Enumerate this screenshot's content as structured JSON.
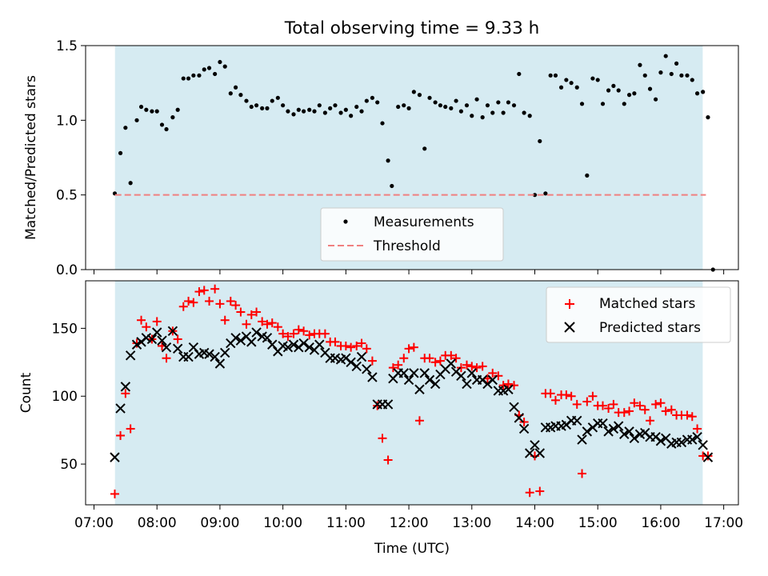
{
  "title": "Total observing time = 9.33 h",
  "xlabel": "Time (UTC)",
  "xticks": [
    {
      "label": "07:00",
      "h": 7.0
    },
    {
      "label": "08:00",
      "h": 8.0
    },
    {
      "label": "09:00",
      "h": 9.0
    },
    {
      "label": "10:00",
      "h": 10.0
    },
    {
      "label": "11:00",
      "h": 11.0
    },
    {
      "label": "12:00",
      "h": 12.0
    },
    {
      "label": "13:00",
      "h": 13.0
    },
    {
      "label": "14:00",
      "h": 14.0
    },
    {
      "label": "15:00",
      "h": 15.0
    },
    {
      "label": "16:00",
      "h": 16.0
    },
    {
      "label": "17:00",
      "h": 17.0
    }
  ],
  "colors": {
    "shade": "#add8e6",
    "measurement": "#000000",
    "threshold": "#f08080",
    "matched": "#ff0000",
    "predicted": "#000000"
  },
  "chart_data": [
    {
      "type": "scatter",
      "ylabel": "Matched/Predicted stars",
      "ylim": [
        0,
        1.5
      ],
      "xlim_time": [
        "06:52",
        "17:14"
      ],
      "yticks": [
        "0.0",
        "0.5",
        "1.0",
        "1.5"
      ],
      "shaded_span_time": [
        "07:20",
        "16:40"
      ],
      "threshold": 0.5,
      "legend_position": "lower-center",
      "legend": {
        "measurements": "Measurements",
        "threshold": "Threshold"
      },
      "points_time_hours": [
        [
          7.33,
          0.51
        ],
        [
          7.42,
          0.78
        ],
        [
          7.5,
          0.95
        ],
        [
          7.58,
          0.58
        ],
        [
          7.68,
          1.0
        ],
        [
          7.75,
          1.09
        ],
        [
          7.83,
          1.07
        ],
        [
          7.92,
          1.06
        ],
        [
          8.0,
          1.06
        ],
        [
          8.08,
          0.97
        ],
        [
          8.15,
          0.94
        ],
        [
          8.25,
          1.02
        ],
        [
          8.33,
          1.07
        ],
        [
          8.42,
          1.28
        ],
        [
          8.5,
          1.28
        ],
        [
          8.58,
          1.3
        ],
        [
          8.67,
          1.3
        ],
        [
          8.75,
          1.34
        ],
        [
          8.83,
          1.35
        ],
        [
          8.92,
          1.31
        ],
        [
          9.0,
          1.39
        ],
        [
          9.08,
          1.36
        ],
        [
          9.17,
          1.18
        ],
        [
          9.25,
          1.22
        ],
        [
          9.33,
          1.17
        ],
        [
          9.42,
          1.13
        ],
        [
          9.5,
          1.09
        ],
        [
          9.58,
          1.1
        ],
        [
          9.67,
          1.08
        ],
        [
          9.75,
          1.08
        ],
        [
          9.83,
          1.13
        ],
        [
          9.92,
          1.15
        ],
        [
          10.0,
          1.1
        ],
        [
          10.08,
          1.06
        ],
        [
          10.17,
          1.04
        ],
        [
          10.25,
          1.07
        ],
        [
          10.33,
          1.06
        ],
        [
          10.42,
          1.07
        ],
        [
          10.5,
          1.06
        ],
        [
          10.58,
          1.1
        ],
        [
          10.67,
          1.05
        ],
        [
          10.75,
          1.08
        ],
        [
          10.83,
          1.1
        ],
        [
          10.92,
          1.05
        ],
        [
          11.0,
          1.07
        ],
        [
          11.08,
          1.03
        ],
        [
          11.17,
          1.09
        ],
        [
          11.25,
          1.06
        ],
        [
          11.33,
          1.13
        ],
        [
          11.42,
          1.15
        ],
        [
          11.5,
          1.12
        ],
        [
          11.58,
          0.98
        ],
        [
          11.67,
          0.73
        ],
        [
          11.73,
          0.56
        ],
        [
          11.83,
          1.09
        ],
        [
          11.92,
          1.1
        ],
        [
          12.0,
          1.08
        ],
        [
          12.08,
          1.19
        ],
        [
          12.17,
          1.17
        ],
        [
          12.25,
          0.81
        ],
        [
          12.33,
          1.15
        ],
        [
          12.42,
          1.12
        ],
        [
          12.5,
          1.1
        ],
        [
          12.58,
          1.09
        ],
        [
          12.67,
          1.08
        ],
        [
          12.75,
          1.13
        ],
        [
          12.83,
          1.06
        ],
        [
          12.92,
          1.1
        ],
        [
          13.0,
          1.03
        ],
        [
          13.08,
          1.14
        ],
        [
          13.17,
          1.02
        ],
        [
          13.25,
          1.1
        ],
        [
          13.33,
          1.05
        ],
        [
          13.42,
          1.12
        ],
        [
          13.5,
          1.05
        ],
        [
          13.58,
          1.12
        ],
        [
          13.67,
          1.1
        ],
        [
          13.75,
          1.31
        ],
        [
          13.83,
          1.05
        ],
        [
          13.92,
          1.03
        ],
        [
          14.0,
          0.5
        ],
        [
          14.08,
          0.86
        ],
        [
          14.17,
          0.51
        ],
        [
          14.25,
          1.3
        ],
        [
          14.33,
          1.3
        ],
        [
          14.42,
          1.22
        ],
        [
          14.5,
          1.27
        ],
        [
          14.58,
          1.25
        ],
        [
          14.67,
          1.22
        ],
        [
          14.75,
          1.11
        ],
        [
          14.83,
          0.63
        ],
        [
          14.92,
          1.28
        ],
        [
          15.0,
          1.27
        ],
        [
          15.08,
          1.11
        ],
        [
          15.17,
          1.2
        ],
        [
          15.25,
          1.23
        ],
        [
          15.33,
          1.2
        ],
        [
          15.42,
          1.11
        ],
        [
          15.5,
          1.17
        ],
        [
          15.58,
          1.18
        ],
        [
          15.67,
          1.37
        ],
        [
          15.75,
          1.3
        ],
        [
          15.83,
          1.21
        ],
        [
          15.92,
          1.14
        ],
        [
          16.0,
          1.32
        ],
        [
          16.08,
          1.43
        ],
        [
          16.17,
          1.31
        ],
        [
          16.25,
          1.38
        ],
        [
          16.33,
          1.3
        ],
        [
          16.42,
          1.3
        ],
        [
          16.5,
          1.27
        ],
        [
          16.58,
          1.18
        ],
        [
          16.67,
          1.19
        ],
        [
          16.75,
          1.02
        ],
        [
          16.83,
          0.0
        ]
      ]
    },
    {
      "type": "scatter",
      "ylabel": "Count",
      "ylim": [
        20,
        185
      ],
      "xlim_time": [
        "06:52",
        "17:14"
      ],
      "yticks": [
        "50",
        "100",
        "150"
      ],
      "shaded_span_time": [
        "07:20",
        "16:40"
      ],
      "legend_position": "upper-right",
      "legend": {
        "matched": "Matched stars",
        "predicted": "Predicted stars"
      },
      "matched_time_hours": [
        [
          7.33,
          28
        ],
        [
          7.42,
          71
        ],
        [
          7.5,
          102
        ],
        [
          7.58,
          76
        ],
        [
          7.68,
          139
        ],
        [
          7.75,
          156
        ],
        [
          7.83,
          151
        ],
        [
          7.92,
          142
        ],
        [
          8.0,
          155
        ],
        [
          8.08,
          137
        ],
        [
          8.15,
          128
        ],
        [
          8.25,
          148
        ],
        [
          8.33,
          142
        ],
        [
          8.42,
          166
        ],
        [
          8.5,
          170
        ],
        [
          8.58,
          169
        ],
        [
          8.67,
          177
        ],
        [
          8.75,
          178
        ],
        [
          8.83,
          170
        ],
        [
          8.92,
          179
        ],
        [
          9.0,
          168
        ],
        [
          9.08,
          156
        ],
        [
          9.17,
          170
        ],
        [
          9.25,
          167
        ],
        [
          9.33,
          162
        ],
        [
          9.42,
          153
        ],
        [
          9.5,
          160
        ],
        [
          9.58,
          162
        ],
        [
          9.67,
          155
        ],
        [
          9.75,
          153
        ],
        [
          9.83,
          154
        ],
        [
          9.92,
          151
        ],
        [
          10.0,
          146
        ],
        [
          10.08,
          144
        ],
        [
          10.17,
          146
        ],
        [
          10.25,
          149
        ],
        [
          10.33,
          148
        ],
        [
          10.42,
          145
        ],
        [
          10.5,
          146
        ],
        [
          10.58,
          146
        ],
        [
          10.67,
          146
        ],
        [
          10.75,
          140
        ],
        [
          10.83,
          140
        ],
        [
          10.92,
          137
        ],
        [
          11.0,
          137
        ],
        [
          11.08,
          136
        ],
        [
          11.17,
          137
        ],
        [
          11.25,
          139
        ],
        [
          11.33,
          135
        ],
        [
          11.42,
          126
        ],
        [
          11.5,
          93
        ],
        [
          11.58,
          69
        ],
        [
          11.67,
          53
        ],
        [
          11.75,
          121
        ],
        [
          11.83,
          123
        ],
        [
          11.92,
          128
        ],
        [
          12.0,
          135
        ],
        [
          12.08,
          136
        ],
        [
          12.17,
          82
        ],
        [
          12.25,
          128
        ],
        [
          12.33,
          128
        ],
        [
          12.42,
          125
        ],
        [
          12.5,
          126
        ],
        [
          12.58,
          130
        ],
        [
          12.67,
          130
        ],
        [
          12.75,
          128
        ],
        [
          12.83,
          121
        ],
        [
          12.92,
          123
        ],
        [
          13.0,
          122
        ],
        [
          13.08,
          121
        ],
        [
          13.17,
          122
        ],
        [
          13.25,
          113
        ],
        [
          13.33,
          117
        ],
        [
          13.42,
          115
        ],
        [
          13.5,
          108
        ],
        [
          13.58,
          109
        ],
        [
          13.67,
          108
        ],
        [
          13.75,
          86
        ],
        [
          13.83,
          81
        ],
        [
          13.92,
          29
        ],
        [
          14.0,
          56
        ],
        [
          14.08,
          30
        ],
        [
          14.17,
          102
        ],
        [
          14.25,
          102
        ],
        [
          14.33,
          97
        ],
        [
          14.42,
          101
        ],
        [
          14.5,
          101
        ],
        [
          14.58,
          100
        ],
        [
          14.67,
          94
        ],
        [
          14.75,
          43
        ],
        [
          14.83,
          96
        ],
        [
          14.92,
          100
        ],
        [
          15.0,
          93
        ],
        [
          15.08,
          93
        ],
        [
          15.17,
          91
        ],
        [
          15.25,
          94
        ],
        [
          15.33,
          88
        ],
        [
          15.42,
          88
        ],
        [
          15.5,
          89
        ],
        [
          15.58,
          95
        ],
        [
          15.67,
          93
        ],
        [
          15.75,
          90
        ],
        [
          15.83,
          82
        ],
        [
          15.92,
          94
        ],
        [
          16.0,
          95
        ],
        [
          16.08,
          89
        ],
        [
          16.17,
          90
        ],
        [
          16.25,
          86
        ],
        [
          16.33,
          86
        ],
        [
          16.42,
          86
        ],
        [
          16.5,
          85
        ],
        [
          16.58,
          76
        ],
        [
          16.67,
          56
        ],
        [
          16.75,
          56
        ]
      ],
      "predicted_time_hours": [
        [
          7.33,
          55
        ],
        [
          7.42,
          91
        ],
        [
          7.5,
          107
        ],
        [
          7.58,
          130
        ],
        [
          7.68,
          138
        ],
        [
          7.75,
          140
        ],
        [
          7.83,
          143
        ],
        [
          7.92,
          142
        ],
        [
          8.0,
          147
        ],
        [
          8.08,
          141
        ],
        [
          8.15,
          136
        ],
        [
          8.25,
          148
        ],
        [
          8.33,
          135
        ],
        [
          8.42,
          129
        ],
        [
          8.5,
          129
        ],
        [
          8.58,
          136
        ],
        [
          8.67,
          131
        ],
        [
          8.75,
          132
        ],
        [
          8.83,
          131
        ],
        [
          8.92,
          129
        ],
        [
          9.0,
          124
        ],
        [
          9.08,
          132
        ],
        [
          9.17,
          139
        ],
        [
          9.25,
          143
        ],
        [
          9.33,
          141
        ],
        [
          9.42,
          144
        ],
        [
          9.5,
          140
        ],
        [
          9.58,
          147
        ],
        [
          9.67,
          144
        ],
        [
          9.75,
          143
        ],
        [
          9.83,
          138
        ],
        [
          9.92,
          133
        ],
        [
          10.0,
          137
        ],
        [
          10.08,
          136
        ],
        [
          10.17,
          138
        ],
        [
          10.25,
          136
        ],
        [
          10.33,
          139
        ],
        [
          10.42,
          136
        ],
        [
          10.5,
          134
        ],
        [
          10.58,
          138
        ],
        [
          10.67,
          132
        ],
        [
          10.75,
          128
        ],
        [
          10.83,
          128
        ],
        [
          10.92,
          127
        ],
        [
          11.0,
          128
        ],
        [
          11.08,
          125
        ],
        [
          11.17,
          122
        ],
        [
          11.25,
          129
        ],
        [
          11.33,
          120
        ],
        [
          11.42,
          114
        ],
        [
          11.5,
          94
        ],
        [
          11.58,
          94
        ],
        [
          11.67,
          94
        ],
        [
          11.75,
          113
        ],
        [
          11.83,
          117
        ],
        [
          11.92,
          117
        ],
        [
          12.0,
          112
        ],
        [
          12.08,
          117
        ],
        [
          12.17,
          105
        ],
        [
          12.25,
          117
        ],
        [
          12.33,
          112
        ],
        [
          12.42,
          109
        ],
        [
          12.5,
          116
        ],
        [
          12.58,
          120
        ],
        [
          12.67,
          124
        ],
        [
          12.75,
          118
        ],
        [
          12.83,
          115
        ],
        [
          12.92,
          109
        ],
        [
          13.0,
          117
        ],
        [
          13.08,
          112
        ],
        [
          13.17,
          112
        ],
        [
          13.25,
          109
        ],
        [
          13.33,
          112
        ],
        [
          13.42,
          104
        ],
        [
          13.5,
          104
        ],
        [
          13.58,
          105
        ],
        [
          13.67,
          92
        ],
        [
          13.75,
          84
        ],
        [
          13.83,
          76
        ],
        [
          13.92,
          58
        ],
        [
          14.0,
          64
        ],
        [
          14.08,
          58
        ],
        [
          14.17,
          77
        ],
        [
          14.25,
          77
        ],
        [
          14.33,
          78
        ],
        [
          14.42,
          78
        ],
        [
          14.5,
          79
        ],
        [
          14.58,
          82
        ],
        [
          14.67,
          82
        ],
        [
          14.75,
          68
        ],
        [
          14.83,
          74
        ],
        [
          14.92,
          77
        ],
        [
          15.0,
          80
        ],
        [
          15.08,
          80
        ],
        [
          15.17,
          74
        ],
        [
          15.25,
          76
        ],
        [
          15.33,
          78
        ],
        [
          15.42,
          72
        ],
        [
          15.5,
          74
        ],
        [
          15.58,
          69
        ],
        [
          15.67,
          72
        ],
        [
          15.75,
          73
        ],
        [
          15.83,
          70
        ],
        [
          15.92,
          70
        ],
        [
          16.0,
          67
        ],
        [
          16.08,
          69
        ],
        [
          16.17,
          65
        ],
        [
          16.25,
          66
        ],
        [
          16.33,
          66
        ],
        [
          16.42,
          68
        ],
        [
          16.5,
          68
        ],
        [
          16.58,
          70
        ],
        [
          16.67,
          64
        ],
        [
          16.75,
          55
        ]
      ]
    }
  ]
}
